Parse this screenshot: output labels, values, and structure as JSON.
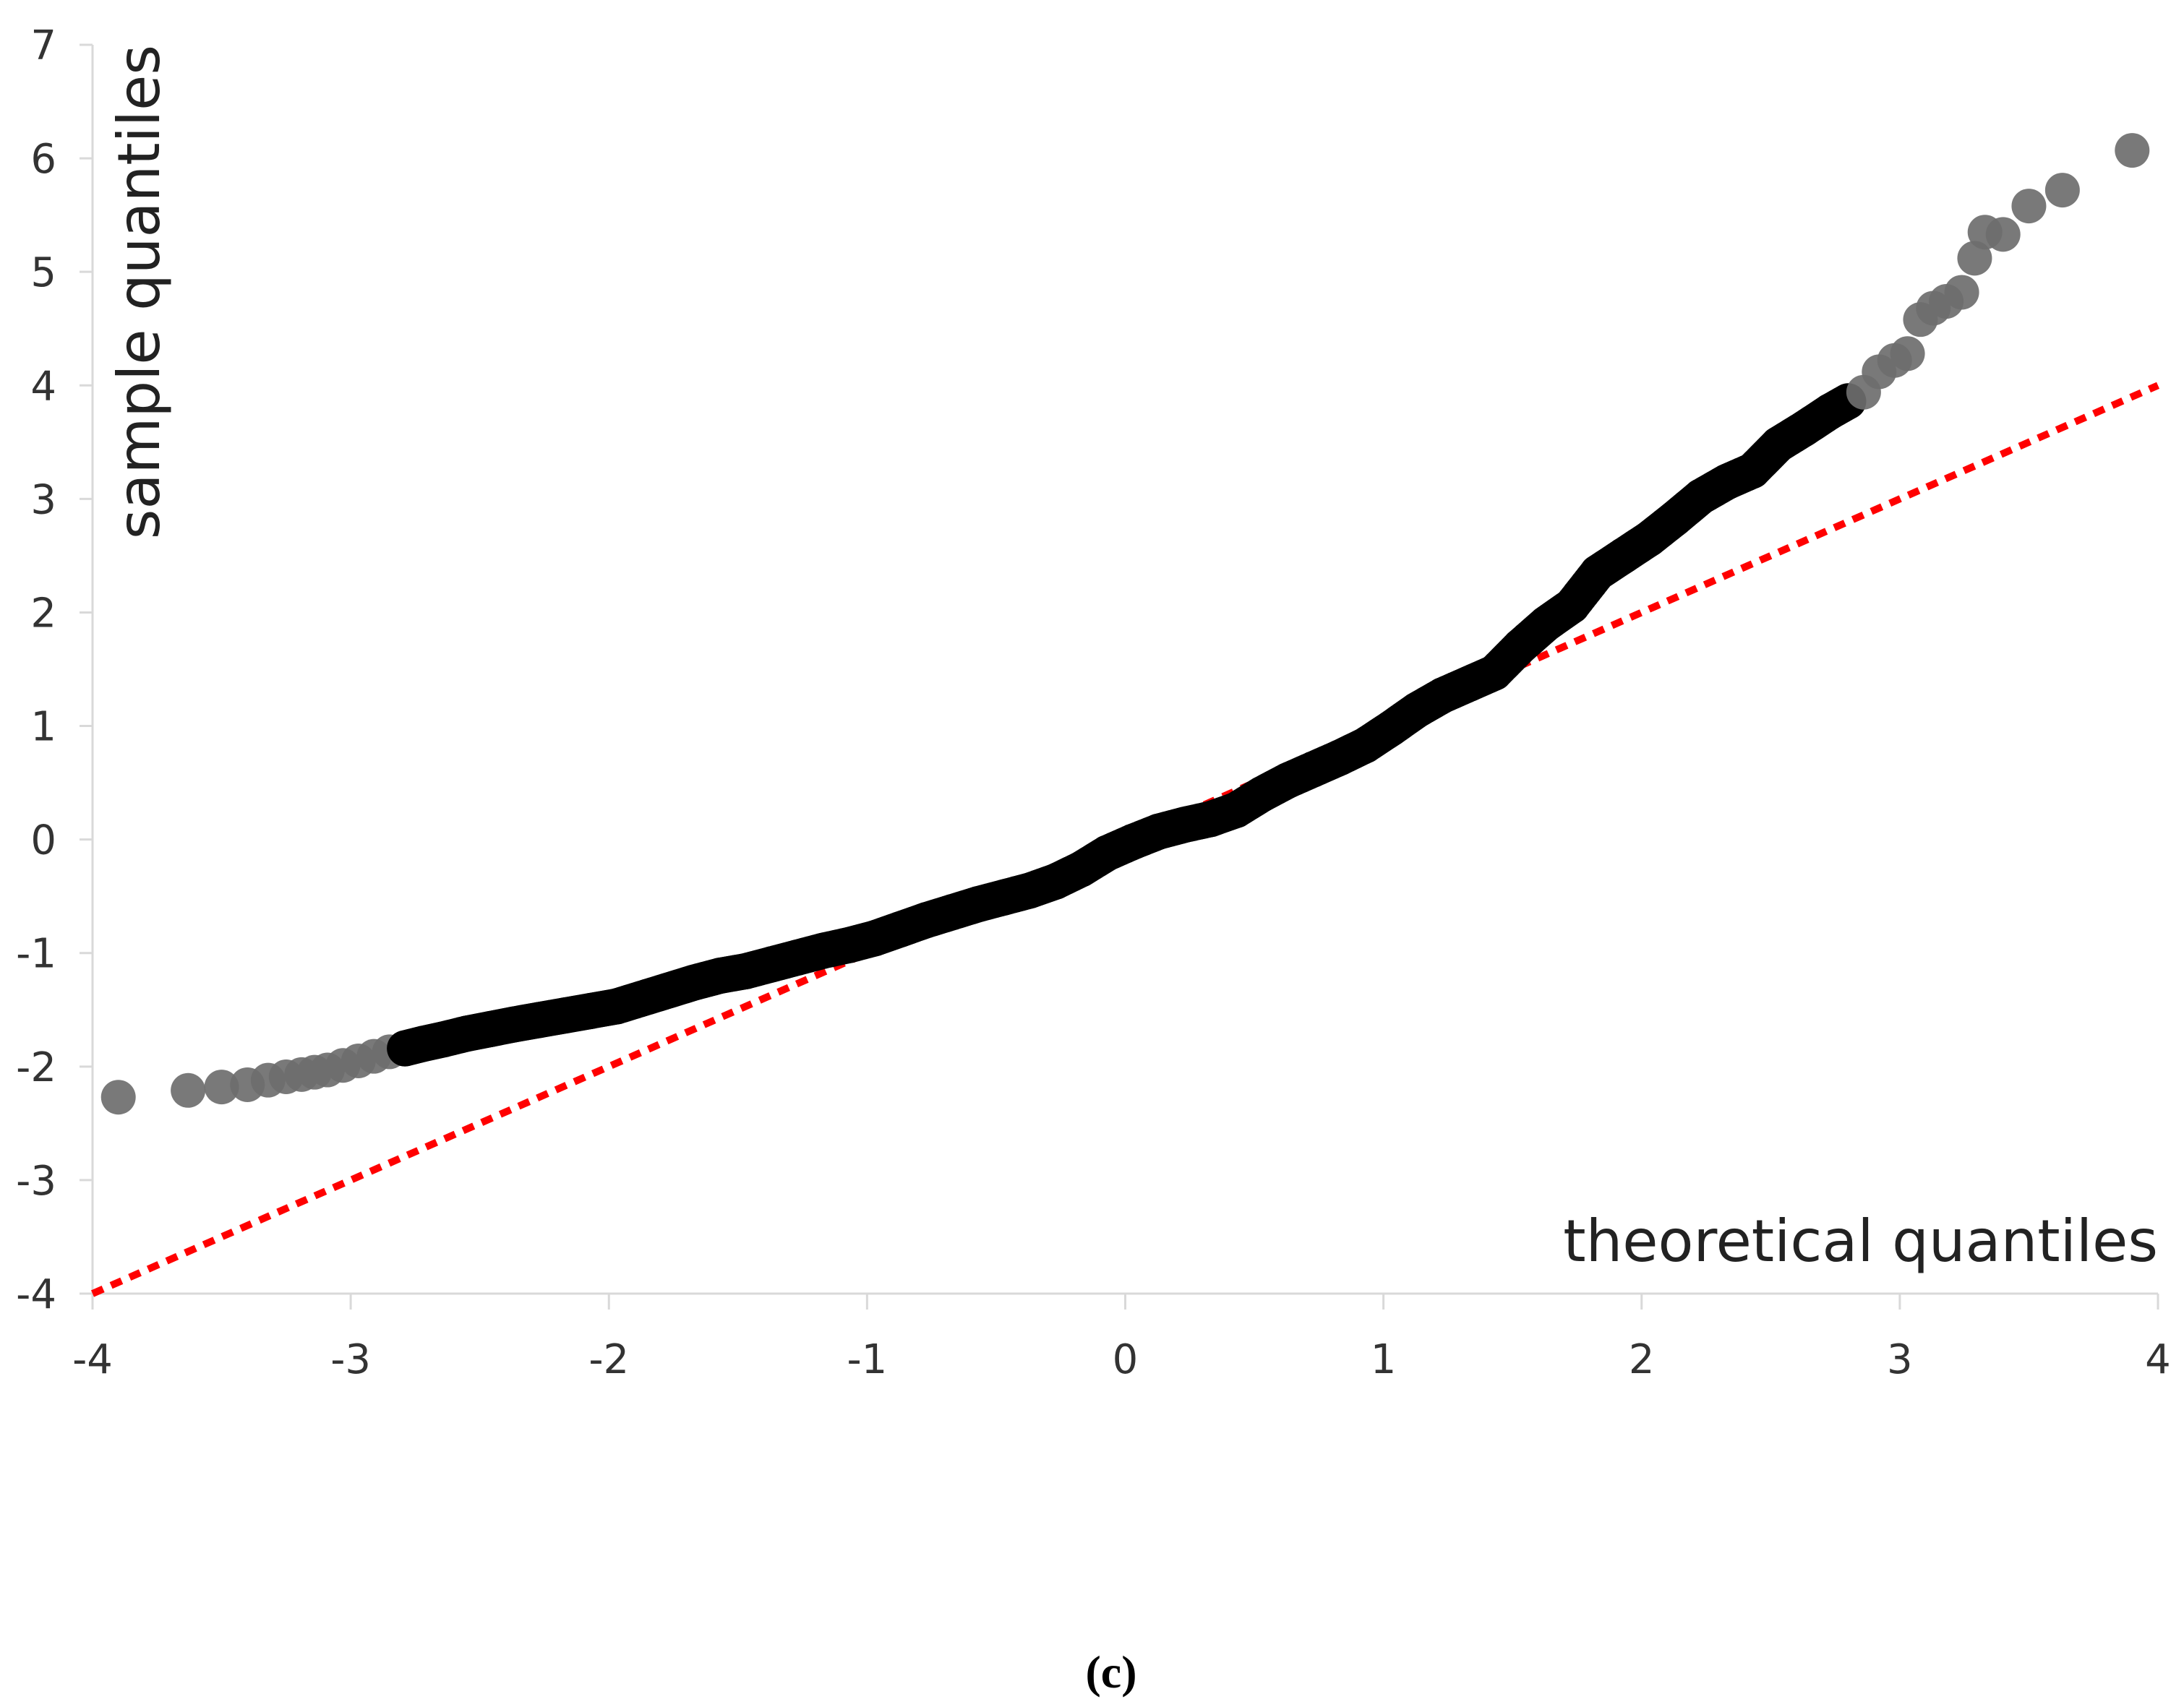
{
  "chart_data": {
    "type": "scatter",
    "title": "",
    "xlabel": "theoretical quantiles",
    "ylabel": "sample quantiles",
    "xlim": [
      -4,
      4
    ],
    "ylim": [
      -4,
      7
    ],
    "x_ticks": [
      "-4",
      "-3",
      "-2",
      "-1",
      "0",
      "1",
      "2",
      "3",
      "4"
    ],
    "y_ticks": [
      "-4",
      "-3",
      "-2",
      "-1",
      "0",
      "1",
      "2",
      "3",
      "4",
      "5",
      "6",
      "7"
    ],
    "grid": false,
    "reference_line": {
      "x": [
        -4,
        4
      ],
      "y": [
        -4,
        4
      ],
      "color": "#ff0000",
      "style": "dotted"
    },
    "point_color": "#000000",
    "tail_point_color": "#6e6e6e",
    "series": [
      {
        "values": [
          [
            -3.9,
            -2.27
          ],
          [
            -3.63,
            -2.21
          ],
          [
            -3.5,
            -2.18
          ],
          [
            -3.4,
            -2.16
          ],
          [
            -3.32,
            -2.12
          ],
          [
            -3.25,
            -2.09
          ],
          [
            -3.19,
            -2.07
          ],
          [
            -3.14,
            -2.05
          ],
          [
            -3.09,
            -2.03
          ],
          [
            -3.03,
            -1.99
          ],
          [
            -2.97,
            -1.95
          ],
          [
            -2.91,
            -1.91
          ],
          [
            -2.85,
            -1.87
          ],
          [
            -2.79,
            -1.84
          ],
          [
            -2.72,
            -1.8
          ],
          [
            -2.64,
            -1.76
          ],
          [
            -2.55,
            -1.71
          ],
          [
            -2.46,
            -1.67
          ],
          [
            -2.37,
            -1.63
          ],
          [
            -2.27,
            -1.59
          ],
          [
            -2.17,
            -1.55
          ],
          [
            -2.07,
            -1.51
          ],
          [
            -1.97,
            -1.47
          ],
          [
            -1.87,
            -1.4
          ],
          [
            -1.77,
            -1.33
          ],
          [
            -1.67,
            -1.26
          ],
          [
            -1.57,
            -1.2
          ],
          [
            -1.47,
            -1.16
          ],
          [
            -1.37,
            -1.1
          ],
          [
            -1.27,
            -1.04
          ],
          [
            -1.17,
            -0.98
          ],
          [
            -1.07,
            -0.93
          ],
          [
            -0.97,
            -0.87
          ],
          [
            -0.87,
            -0.79
          ],
          [
            -0.77,
            -0.71
          ],
          [
            -0.67,
            -0.64
          ],
          [
            -0.57,
            -0.57
          ],
          [
            -0.47,
            -0.51
          ],
          [
            -0.37,
            -0.45
          ],
          [
            -0.27,
            -0.37
          ],
          [
            -0.17,
            -0.26
          ],
          [
            -0.07,
            -0.12
          ],
          [
            0.03,
            -0.02
          ],
          [
            0.13,
            0.07
          ],
          [
            0.23,
            0.13
          ],
          [
            0.33,
            0.18
          ],
          [
            0.43,
            0.26
          ],
          [
            0.53,
            0.4
          ],
          [
            0.63,
            0.52
          ],
          [
            0.73,
            0.62
          ],
          [
            0.83,
            0.72
          ],
          [
            0.93,
            0.83
          ],
          [
            1.03,
            0.98
          ],
          [
            1.13,
            1.14
          ],
          [
            1.23,
            1.27
          ],
          [
            1.33,
            1.37
          ],
          [
            1.43,
            1.47
          ],
          [
            1.53,
            1.7
          ],
          [
            1.63,
            1.9
          ],
          [
            1.73,
            2.06
          ],
          [
            1.83,
            2.35
          ],
          [
            1.93,
            2.5
          ],
          [
            2.03,
            2.65
          ],
          [
            2.13,
            2.83
          ],
          [
            2.23,
            3.02
          ],
          [
            2.33,
            3.15
          ],
          [
            2.43,
            3.25
          ],
          [
            2.53,
            3.48
          ],
          [
            2.63,
            3.62
          ],
          [
            2.73,
            3.77
          ],
          [
            2.8,
            3.86
          ],
          [
            2.86,
            3.94
          ],
          [
            2.92,
            4.12
          ],
          [
            2.98,
            4.22
          ],
          [
            3.03,
            4.28
          ],
          [
            3.08,
            4.58
          ],
          [
            3.13,
            4.68
          ],
          [
            3.18,
            4.74
          ],
          [
            3.24,
            4.82
          ],
          [
            3.29,
            5.12
          ],
          [
            3.33,
            5.35
          ],
          [
            3.4,
            5.33
          ],
          [
            3.5,
            5.58
          ],
          [
            3.63,
            5.72
          ],
          [
            3.9,
            6.07
          ]
        ]
      }
    ]
  },
  "caption": "(c)"
}
